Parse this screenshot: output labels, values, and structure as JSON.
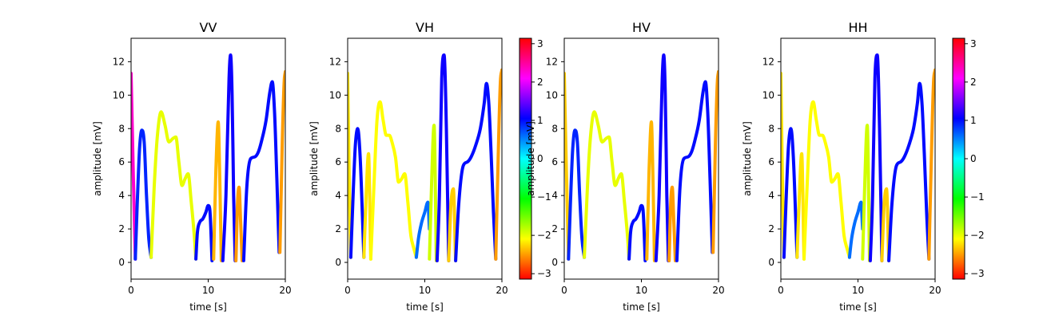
{
  "chart_data": [
    {
      "type": "line",
      "title": "VV",
      "xlabel": "time [s]",
      "ylabel": "amplitude [mV]",
      "xlim": [
        0,
        20
      ],
      "ylim": [
        -1,
        13.4
      ],
      "xticks": [
        "0",
        "10",
        "20"
      ],
      "yticks": [
        "0",
        "2",
        "4",
        "6",
        "8",
        "10",
        "12"
      ],
      "colorbar": false,
      "series": [
        {
          "phase": 2.3,
          "x": [
            0.0,
            0.3,
            0.55
          ],
          "y": [
            11.3,
            5.0,
            0.2
          ]
        },
        {
          "phase": 0.9,
          "x": [
            0.55,
            0.8,
            1.1,
            1.4,
            1.7,
            2.0,
            2.3,
            2.6
          ],
          "y": [
            0.2,
            3.5,
            6.8,
            7.9,
            7.2,
            4.0,
            1.4,
            0.3
          ]
        },
        {
          "phase": -2.0,
          "x": [
            2.6,
            3.0,
            3.4,
            3.9,
            4.4,
            4.9,
            5.4,
            5.8,
            6.2,
            6.6,
            7.0,
            7.4,
            7.8,
            8.2,
            8.4
          ],
          "y": [
            0.3,
            4.5,
            7.5,
            9.0,
            8.2,
            7.2,
            7.4,
            7.5,
            6.0,
            4.6,
            5.0,
            5.3,
            3.6,
            1.6,
            0.2
          ]
        },
        {
          "phase": 1.0,
          "x": [
            8.4,
            8.6,
            8.9,
            9.3,
            9.7,
            10.0,
            10.2,
            10.5
          ],
          "y": [
            0.2,
            1.8,
            2.4,
            2.6,
            3.0,
            3.4,
            3.2,
            0.1
          ]
        },
        {
          "phase": -2.4,
          "x": [
            10.7,
            11.0,
            11.3,
            11.5,
            11.7
          ],
          "y": [
            0.2,
            5.5,
            8.4,
            5.0,
            0.1
          ]
        },
        {
          "phase": 1.1,
          "x": [
            11.9,
            12.3,
            12.7,
            12.9,
            13.1,
            13.3,
            13.5
          ],
          "y": [
            0.1,
            4.0,
            11.0,
            12.4,
            10.0,
            4.0,
            0.1
          ]
        },
        {
          "phase": -2.5,
          "x": [
            13.6,
            13.8,
            14.0,
            14.2,
            14.4
          ],
          "y": [
            0.1,
            3.5,
            4.5,
            2.5,
            0.1
          ]
        },
        {
          "phase": 1.0,
          "x": [
            14.6,
            15.0,
            15.5,
            16.0,
            16.5,
            17.0,
            17.5,
            18.0,
            18.3,
            18.6,
            18.9,
            19.2
          ],
          "y": [
            0.1,
            4.5,
            6.2,
            6.3,
            6.6,
            7.4,
            8.5,
            10.2,
            10.8,
            9.0,
            5.0,
            0.6
          ]
        },
        {
          "phase": -2.5,
          "x": [
            19.3,
            19.6,
            19.85,
            20.0
          ],
          "y": [
            0.6,
            7.0,
            10.8,
            11.4
          ]
        }
      ]
    },
    {
      "type": "line",
      "title": "VH",
      "xlabel": "time [s]",
      "ylabel": "amplitude [mV]",
      "xlim": [
        0,
        20
      ],
      "ylim": [
        -1,
        13.4
      ],
      "xticks": [
        "0",
        "10",
        "20"
      ],
      "yticks": [
        "0",
        "2",
        "4",
        "6",
        "8",
        "10",
        "12"
      ],
      "colorbar": true,
      "colorbar_ticks": [
        "3",
        "2",
        "1",
        "0",
        "−1",
        "−2",
        "−3"
      ],
      "series": [
        {
          "phase": -2.2,
          "x": [
            0.0,
            0.2,
            0.4
          ],
          "y": [
            11.3,
            5.0,
            0.3
          ]
        },
        {
          "phase": 1.0,
          "x": [
            0.4,
            0.7,
            1.0,
            1.3,
            1.6,
            1.9,
            2.1
          ],
          "y": [
            0.3,
            4.0,
            7.0,
            8.0,
            6.5,
            3.0,
            0.3
          ]
        },
        {
          "phase": -2.2,
          "x": [
            2.1,
            2.4,
            2.7,
            3.0
          ],
          "y": [
            0.3,
            4.0,
            6.5,
            0.2
          ]
        },
        {
          "phase": -2.1,
          "x": [
            3.0,
            3.4,
            3.8,
            4.2,
            4.6,
            5.0,
            5.4,
            5.8,
            6.2,
            6.6,
            7.0,
            7.4,
            7.8,
            8.2,
            8.6,
            8.9
          ],
          "y": [
            0.2,
            4.5,
            8.5,
            9.6,
            8.5,
            7.6,
            7.6,
            7.1,
            6.3,
            4.8,
            5.0,
            5.3,
            3.6,
            1.6,
            0.8,
            0.3
          ]
        },
        {
          "phase": 0.6,
          "x": [
            8.9,
            9.2,
            9.6,
            10.0,
            10.4,
            10.6
          ],
          "y": [
            0.3,
            1.5,
            2.4,
            3.0,
            3.6,
            2.0
          ]
        },
        {
          "phase": -1.9,
          "x": [
            10.6,
            10.9,
            11.2,
            11.5
          ],
          "y": [
            0.2,
            5.0,
            8.2,
            0.1
          ]
        },
        {
          "phase": 1.1,
          "x": [
            11.6,
            11.9,
            12.2,
            12.5,
            12.8,
            13.1
          ],
          "y": [
            0.1,
            4.0,
            11.0,
            12.4,
            8.0,
            0.1
          ]
        },
        {
          "phase": -2.3,
          "x": [
            13.1,
            13.4,
            13.7,
            14.0
          ],
          "y": [
            0.1,
            3.5,
            4.4,
            0.1
          ]
        },
        {
          "phase": 1.0,
          "x": [
            14.0,
            14.4,
            15.0,
            15.5,
            16.0,
            16.6,
            17.2,
            17.7,
            18.0,
            18.3,
            18.6,
            18.9,
            19.2
          ],
          "y": [
            0.1,
            3.5,
            5.8,
            6.0,
            6.3,
            7.0,
            8.0,
            9.5,
            10.7,
            9.5,
            6.5,
            3.0,
            0.2
          ]
        },
        {
          "phase": -2.5,
          "x": [
            19.2,
            19.5,
            19.8,
            20.0
          ],
          "y": [
            0.2,
            6.0,
            10.8,
            11.5
          ]
        }
      ]
    },
    {
      "type": "line",
      "title": "HV",
      "xlabel": "time [s]",
      "ylabel": "amplitude [mV]",
      "xlim": [
        0,
        20
      ],
      "ylim": [
        -1,
        13.4
      ],
      "xticks": [
        "0",
        "10",
        "20"
      ],
      "yticks": [
        "0",
        "2",
        "4",
        "6",
        "8",
        "10",
        "12"
      ],
      "colorbar": false,
      "series": [
        {
          "phase": -2.3,
          "x": [
            0.0,
            0.3,
            0.55
          ],
          "y": [
            11.3,
            5.0,
            0.2
          ]
        },
        {
          "phase": 0.9,
          "x": [
            0.55,
            0.8,
            1.1,
            1.4,
            1.7,
            2.0,
            2.3,
            2.6
          ],
          "y": [
            0.2,
            3.5,
            6.8,
            7.9,
            7.2,
            4.0,
            1.4,
            0.3
          ]
        },
        {
          "phase": -2.0,
          "x": [
            2.6,
            3.0,
            3.4,
            3.9,
            4.4,
            4.9,
            5.4,
            5.8,
            6.2,
            6.6,
            7.0,
            7.4,
            7.8,
            8.2,
            8.4
          ],
          "y": [
            0.3,
            4.5,
            7.5,
            9.0,
            8.2,
            7.2,
            7.4,
            7.5,
            6.0,
            4.6,
            5.0,
            5.3,
            3.6,
            1.6,
            0.2
          ]
        },
        {
          "phase": 1.0,
          "x": [
            8.4,
            8.6,
            8.9,
            9.3,
            9.7,
            10.0,
            10.2,
            10.5
          ],
          "y": [
            0.2,
            1.8,
            2.4,
            2.6,
            3.0,
            3.4,
            3.2,
            0.1
          ]
        },
        {
          "phase": -2.4,
          "x": [
            10.7,
            11.0,
            11.3,
            11.5,
            11.7
          ],
          "y": [
            0.2,
            5.5,
            8.4,
            5.0,
            0.1
          ]
        },
        {
          "phase": 1.1,
          "x": [
            11.9,
            12.3,
            12.7,
            12.9,
            13.1,
            13.3,
            13.5
          ],
          "y": [
            0.1,
            4.0,
            11.0,
            12.4,
            10.0,
            4.0,
            0.1
          ]
        },
        {
          "phase": -2.5,
          "x": [
            13.6,
            13.8,
            14.0,
            14.2,
            14.4
          ],
          "y": [
            0.1,
            3.5,
            4.5,
            2.5,
            0.1
          ]
        },
        {
          "phase": 1.0,
          "x": [
            14.6,
            15.0,
            15.5,
            16.0,
            16.5,
            17.0,
            17.5,
            18.0,
            18.3,
            18.6,
            18.9,
            19.2
          ],
          "y": [
            0.1,
            4.5,
            6.2,
            6.3,
            6.6,
            7.4,
            8.5,
            10.2,
            10.8,
            9.0,
            5.0,
            0.6
          ]
        },
        {
          "phase": -2.5,
          "x": [
            19.3,
            19.6,
            19.85,
            20.0
          ],
          "y": [
            0.6,
            7.0,
            10.8,
            11.4
          ]
        }
      ]
    },
    {
      "type": "line",
      "title": "HH",
      "xlabel": "time [s]",
      "ylabel": "amplitude [mV]",
      "xlim": [
        0,
        20
      ],
      "ylim": [
        -1,
        13.4
      ],
      "xticks": [
        "0",
        "10",
        "20"
      ],
      "yticks": [
        "0",
        "2",
        "4",
        "6",
        "8",
        "10",
        "12"
      ],
      "colorbar": true,
      "colorbar_ticks": [
        "3",
        "2",
        "1",
        "0",
        "−1",
        "−2",
        "−3"
      ],
      "series": [
        {
          "phase": -2.2,
          "x": [
            0.0,
            0.2,
            0.4
          ],
          "y": [
            11.3,
            5.0,
            0.3
          ]
        },
        {
          "phase": 1.0,
          "x": [
            0.4,
            0.7,
            1.0,
            1.3,
            1.6,
            1.9,
            2.1
          ],
          "y": [
            0.3,
            4.0,
            7.0,
            8.0,
            6.5,
            3.0,
            0.3
          ]
        },
        {
          "phase": -2.2,
          "x": [
            2.1,
            2.4,
            2.7,
            3.0
          ],
          "y": [
            0.3,
            4.0,
            6.5,
            0.2
          ]
        },
        {
          "phase": -2.1,
          "x": [
            3.0,
            3.4,
            3.8,
            4.2,
            4.6,
            5.0,
            5.4,
            5.8,
            6.2,
            6.6,
            7.0,
            7.4,
            7.8,
            8.2,
            8.6,
            8.9
          ],
          "y": [
            0.2,
            4.5,
            8.5,
            9.6,
            8.5,
            7.6,
            7.6,
            7.1,
            6.3,
            4.8,
            5.0,
            5.3,
            3.6,
            1.6,
            0.8,
            0.3
          ]
        },
        {
          "phase": 0.6,
          "x": [
            8.9,
            9.2,
            9.6,
            10.0,
            10.4,
            10.6
          ],
          "y": [
            0.3,
            1.5,
            2.4,
            3.0,
            3.6,
            2.0
          ]
        },
        {
          "phase": -1.9,
          "x": [
            10.6,
            10.9,
            11.2,
            11.5
          ],
          "y": [
            0.2,
            5.0,
            8.2,
            0.1
          ]
        },
        {
          "phase": 1.1,
          "x": [
            11.6,
            11.9,
            12.2,
            12.5,
            12.8,
            13.1
          ],
          "y": [
            0.1,
            4.0,
            11.0,
            12.4,
            8.0,
            0.1
          ]
        },
        {
          "phase": -2.3,
          "x": [
            13.1,
            13.4,
            13.7,
            14.0
          ],
          "y": [
            0.1,
            3.5,
            4.4,
            0.1
          ]
        },
        {
          "phase": 1.0,
          "x": [
            14.0,
            14.4,
            15.0,
            15.5,
            16.0,
            16.6,
            17.2,
            17.7,
            18.0,
            18.3,
            18.6,
            18.9,
            19.2
          ],
          "y": [
            0.1,
            3.5,
            5.8,
            6.0,
            6.3,
            7.0,
            8.0,
            9.5,
            10.7,
            9.5,
            6.5,
            3.0,
            0.2
          ]
        },
        {
          "phase": -2.5,
          "x": [
            19.2,
            19.5,
            19.8,
            20.0
          ],
          "y": [
            0.2,
            6.0,
            10.8,
            11.5
          ]
        }
      ]
    }
  ]
}
